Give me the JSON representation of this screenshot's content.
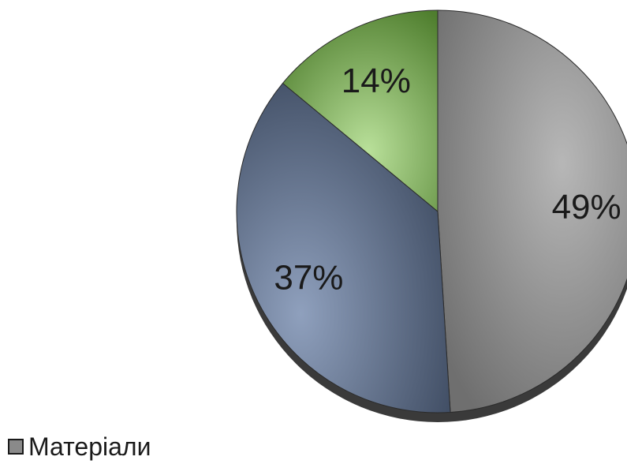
{
  "chart_data": {
    "type": "pie",
    "slices": [
      {
        "label": "49%",
        "value": 49,
        "color": "#8a8a8a",
        "legend": "Матеріали"
      },
      {
        "label": "37%",
        "value": 37,
        "color": "#55657e"
      },
      {
        "label": "14%",
        "value": 14,
        "color": "#6f9a4a"
      }
    ],
    "legend_position": "bottom-left"
  }
}
